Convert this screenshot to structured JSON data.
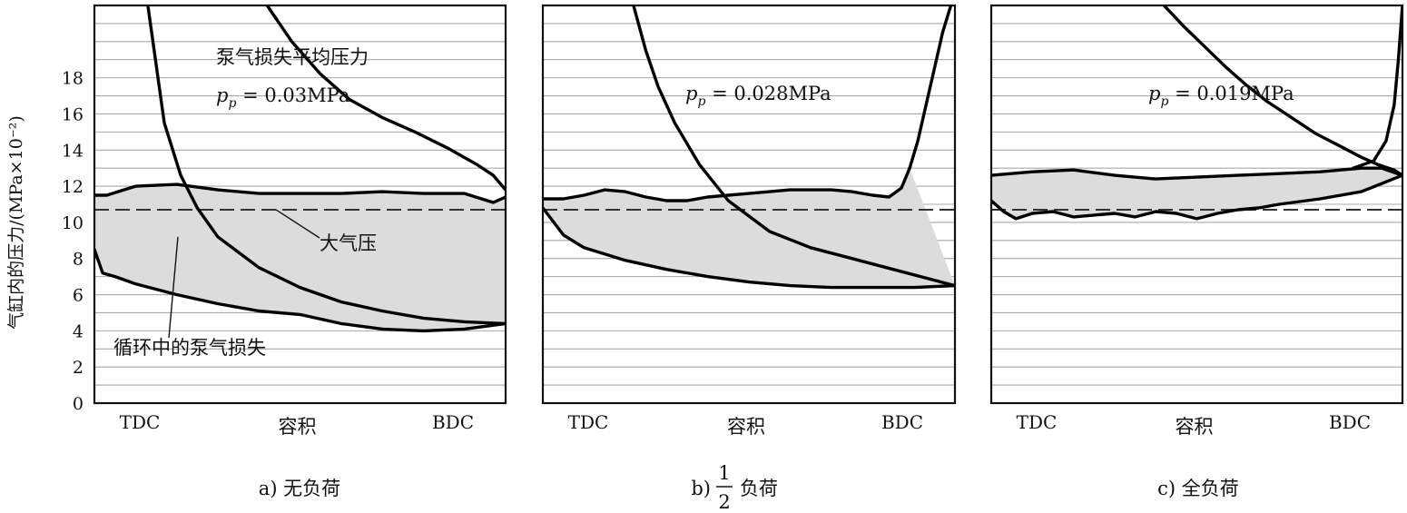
{
  "ylabel": "气缸内的压力/(MPa×10⁻²)",
  "yticks": [
    0,
    2,
    4,
    6,
    8,
    10,
    12,
    14,
    16,
    18
  ],
  "xticks": [
    "TDC",
    "BDC"
  ],
  "xlabel": "容积",
  "atmosphere_label": "大气压",
  "colors": {
    "loop_fill": "#dcdcdc",
    "line": "#000000",
    "grid": "#a8a8a8"
  },
  "chart_data": [
    {
      "type": "line",
      "caption": "a) 无负荷",
      "xlabel": "容积",
      "ylabel": "气缸内的压力/(MPa×10⁻²)",
      "ylim": [
        0,
        22
      ],
      "xlim": [
        0,
        1
      ],
      "x_ticks": [
        "TDC",
        "BDC"
      ],
      "y_ticks": [
        0,
        2,
        4,
        6,
        8,
        10,
        12,
        14,
        16,
        18
      ],
      "grid": "horizontal",
      "atmospheric_pressure": 10.7,
      "pumping_mep_label": "泵气损失平均压力",
      "pumping_mep_value": "p_p = 0.03MPa",
      "loop_label": "循环中的泵气损失",
      "series": [
        {
          "x": [
            0.0,
            0.03,
            0.1,
            0.2,
            0.3,
            0.4,
            0.5,
            0.6,
            0.7,
            0.8,
            0.9,
            0.97,
            1.0
          ],
          "y": [
            11.5,
            11.5,
            12.0,
            12.1,
            11.8,
            11.6,
            11.6,
            11.6,
            11.7,
            11.6,
            11.6,
            11.1,
            11.4
          ]
        },
        {
          "x": [
            0.0,
            0.02,
            0.05,
            0.1,
            0.2,
            0.3,
            0.4,
            0.5,
            0.6,
            0.7,
            0.8,
            0.9,
            1.0
          ],
          "y": [
            8.5,
            7.2,
            7.0,
            6.6,
            6.0,
            5.5,
            5.1,
            4.9,
            4.4,
            4.1,
            4.0,
            4.1,
            4.4
          ]
        },
        {
          "x": [
            0.13,
            0.17,
            0.21,
            0.25,
            0.3,
            0.4,
            0.5,
            0.6,
            0.7,
            0.8,
            0.9,
            1.0
          ],
          "y": [
            22,
            15.5,
            12.6,
            10.8,
            9.2,
            7.5,
            6.4,
            5.6,
            5.1,
            4.7,
            4.5,
            4.4
          ]
        },
        {
          "x": [
            0.42,
            0.48,
            0.55,
            0.62,
            0.7,
            0.78,
            0.86,
            0.93,
            0.97,
            1.0
          ],
          "y": [
            22,
            20.0,
            18.2,
            16.8,
            15.8,
            15.0,
            14.1,
            13.2,
            12.6,
            11.8
          ]
        }
      ]
    },
    {
      "type": "line",
      "caption": "b) 1/2 负荷",
      "caption_prefix": "b)",
      "caption_num": "1",
      "caption_den": "2",
      "caption_suffix": "负荷",
      "xlabel": "容积",
      "ylim": [
        0,
        22
      ],
      "xlim": [
        0,
        1
      ],
      "x_ticks": [
        "TDC",
        "BDC"
      ],
      "grid": "horizontal",
      "atmospheric_pressure": 10.7,
      "pumping_mep_value": "p_p = 0.028MPa",
      "series": [
        {
          "x": [
            0.0,
            0.05,
            0.1,
            0.15,
            0.2,
            0.25,
            0.3,
            0.35,
            0.4,
            0.45,
            0.5,
            0.55,
            0.6,
            0.65,
            0.7,
            0.75,
            0.8,
            0.84,
            0.87,
            0.89
          ],
          "y": [
            11.3,
            11.3,
            11.5,
            11.8,
            11.7,
            11.4,
            11.2,
            11.2,
            11.4,
            11.5,
            11.6,
            11.7,
            11.8,
            11.8,
            11.8,
            11.7,
            11.5,
            11.4,
            11.9,
            13.0
          ]
        },
        {
          "x": [
            0.89,
            0.91,
            0.93,
            0.95,
            0.97,
            0.99
          ],
          "y": [
            13.0,
            14.5,
            16.5,
            18.5,
            20.5,
            22
          ]
        },
        {
          "x": [
            0.0,
            0.05,
            0.1,
            0.2,
            0.3,
            0.4,
            0.5,
            0.6,
            0.7,
            0.8,
            0.9,
            1.0
          ],
          "y": [
            10.8,
            9.3,
            8.6,
            7.9,
            7.4,
            7.0,
            6.7,
            6.5,
            6.4,
            6.4,
            6.4,
            6.5
          ]
        },
        {
          "x": [
            0.22,
            0.25,
            0.28,
            0.32,
            0.38,
            0.45,
            0.55,
            0.65,
            0.75,
            0.85,
            0.95,
            1.0
          ],
          "y": [
            22,
            19.5,
            17.5,
            15.5,
            13.2,
            11.2,
            9.5,
            8.6,
            8.0,
            7.4,
            6.8,
            6.5
          ]
        }
      ]
    },
    {
      "type": "line",
      "caption": "c) 全负荷",
      "xlabel": "容积",
      "ylim": [
        0,
        22
      ],
      "xlim": [
        0,
        1
      ],
      "x_ticks": [
        "TDC",
        "BDC"
      ],
      "grid": "horizontal",
      "atmospheric_pressure": 10.7,
      "pumping_mep_value": "p_p = 0.019MPa",
      "series": [
        {
          "x": [
            0.0,
            0.1,
            0.2,
            0.3,
            0.4,
            0.5,
            0.6,
            0.7,
            0.8,
            0.9,
            0.95,
            1.0
          ],
          "y": [
            12.6,
            12.8,
            12.9,
            12.6,
            12.4,
            12.5,
            12.6,
            12.7,
            12.8,
            13.0,
            13.0,
            12.6
          ]
        },
        {
          "x": [
            0.0,
            0.03,
            0.06,
            0.1,
            0.15,
            0.2,
            0.25,
            0.3,
            0.35,
            0.4,
            0.45,
            0.5,
            0.55,
            0.6,
            0.65,
            0.7,
            0.8,
            0.9,
            1.0
          ],
          "y": [
            11.2,
            10.6,
            10.2,
            10.5,
            10.6,
            10.3,
            10.4,
            10.5,
            10.3,
            10.6,
            10.5,
            10.2,
            10.5,
            10.7,
            10.8,
            11.0,
            11.3,
            11.7,
            12.6
          ]
        },
        {
          "x": [
            0.42,
            0.47,
            0.52,
            0.57,
            0.62,
            0.67,
            0.73,
            0.79,
            0.85,
            0.9,
            0.94,
            0.98,
            1.0
          ],
          "y": [
            22,
            20.8,
            19.7,
            18.6,
            17.6,
            16.7,
            15.8,
            14.9,
            14.2,
            13.6,
            13.2,
            12.9,
            12.6
          ]
        },
        {
          "x": [
            0.88,
            0.93,
            0.96,
            0.98,
            0.99,
            1.0
          ],
          "y": [
            13.0,
            13.4,
            14.5,
            16.5,
            19.0,
            22
          ]
        }
      ]
    }
  ]
}
